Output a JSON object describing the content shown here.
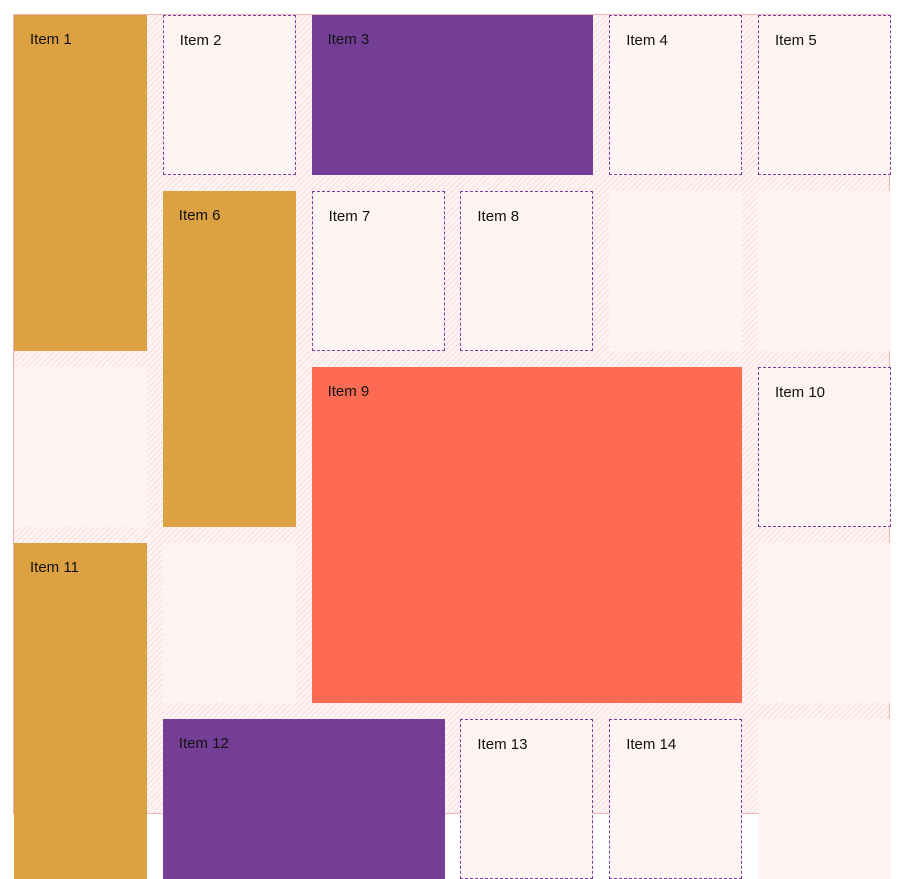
{
  "colors": {
    "gold": "#dca242",
    "purple": "#743e97",
    "coral": "#fe6b55",
    "empty": "#fdf4f3",
    "gap_hatch": "#f6c6c6",
    "outline": "#7a3ea0"
  },
  "items": [
    {
      "label": "Item 1",
      "color": "gold"
    },
    {
      "label": "Item 2",
      "color": "plain"
    },
    {
      "label": "Item 3",
      "color": "purple"
    },
    {
      "label": "Item 4",
      "color": "plain"
    },
    {
      "label": "Item 5",
      "color": "plain"
    },
    {
      "label": "Item 6",
      "color": "gold"
    },
    {
      "label": "Item 7",
      "color": "plain"
    },
    {
      "label": "Item 8",
      "color": "plain"
    },
    {
      "label": "Item 9",
      "color": "coral"
    },
    {
      "label": "Item 10",
      "color": "plain"
    },
    {
      "label": "Item 11",
      "color": "gold"
    },
    {
      "label": "Item 12",
      "color": "purple"
    },
    {
      "label": "Item 13",
      "color": "plain"
    },
    {
      "label": "Item 14",
      "color": "plain"
    }
  ]
}
